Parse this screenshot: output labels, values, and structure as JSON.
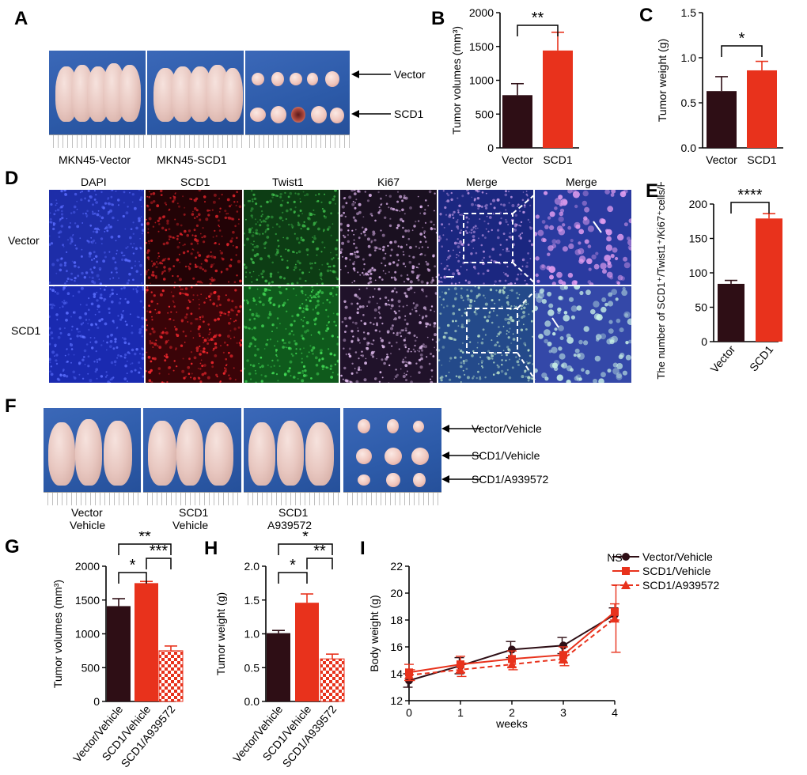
{
  "panels": {
    "A": "A",
    "B": "B",
    "C": "C",
    "D": "D",
    "E": "E",
    "F": "F",
    "G": "G",
    "H": "H",
    "I": "I"
  },
  "panel_a": {
    "captions": [
      "MKN45-Vector",
      "MKN45-SCD1"
    ],
    "arrow_labels": [
      "Vector",
      "SCD1"
    ]
  },
  "panel_d": {
    "columns": [
      "DAPI",
      "SCD1",
      "Twist1",
      "Ki67",
      "Merge",
      "Merge"
    ],
    "rows": [
      "Vector",
      "SCD1"
    ],
    "colors": {
      "DAPI": "#1f2fb0",
      "SCD1": "#c8141e",
      "Twist1": "#1f8a2c",
      "Ki67": "#c7a3d9",
      "Merge": "#5c6fc4"
    }
  },
  "panel_f": {
    "captions": [
      [
        "Vector",
        "Vehicle"
      ],
      [
        "SCD1",
        "Vehicle"
      ],
      [
        "SCD1",
        "A939572"
      ]
    ],
    "arrow_labels": [
      "Vector/Vehicle",
      "SCD1/Vehicle",
      "SCD1/A939572"
    ]
  },
  "colors": {
    "dark": "#2e0e15",
    "red": "#e8321c",
    "checker": "#e8321c"
  },
  "chart_data": [
    {
      "panel": "B",
      "type": "bar",
      "categories": [
        "Vector",
        "SCD1"
      ],
      "values": [
        780,
        1440
      ],
      "errors": [
        170,
        270
      ],
      "ylabel": "Tumor volumes (mm³)",
      "ylim": [
        0,
        2000
      ],
      "yticks": [
        "0",
        "500",
        "1000",
        "1500",
        "2000"
      ],
      "significance": [
        {
          "pair": [
            0,
            1
          ],
          "label": "**"
        }
      ]
    },
    {
      "panel": "C",
      "type": "bar",
      "categories": [
        "Vector",
        "SCD1"
      ],
      "values": [
        0.63,
        0.86
      ],
      "errors": [
        0.16,
        0.1
      ],
      "ylabel": "Tumor weight (g)",
      "ylim": [
        0,
        1.5
      ],
      "yticks": [
        "0.0",
        "0.5",
        "1.0",
        "1.5"
      ],
      "significance": [
        {
          "pair": [
            0,
            1
          ],
          "label": "*"
        }
      ]
    },
    {
      "panel": "E",
      "type": "bar",
      "categories": [
        "Vector",
        "SCD1"
      ],
      "values": [
        84,
        179
      ],
      "errors": [
        5,
        7
      ],
      "ylabel": "The number of SCD1⁺/Twist1⁺/Ki67⁺cells/HPF",
      "ylim": [
        0,
        200
      ],
      "yticks": [
        "0",
        "50",
        "100",
        "150",
        "200"
      ],
      "significance": [
        {
          "pair": [
            0,
            1
          ],
          "label": "****"
        }
      ]
    },
    {
      "panel": "G",
      "type": "bar",
      "categories": [
        "Vector/Vehicle",
        "SCD1/Vehicle",
        "SCD1/A939572"
      ],
      "values": [
        1410,
        1750,
        750
      ],
      "errors": [
        110,
        25,
        70
      ],
      "ylabel": "Tumor volumes (mm³)",
      "ylim": [
        0,
        2000
      ],
      "yticks": [
        "0",
        "500",
        "1000",
        "1500",
        "2000"
      ],
      "significance": [
        {
          "pair": [
            0,
            1
          ],
          "label": "*"
        },
        {
          "pair": [
            1,
            2
          ],
          "label": "***"
        },
        {
          "pair": [
            0,
            2
          ],
          "label": "**"
        }
      ]
    },
    {
      "panel": "H",
      "type": "bar",
      "categories": [
        "Vector/Vehicle",
        "SCD1/Vehicle",
        "SCD1/A939572"
      ],
      "values": [
        1.01,
        1.46,
        0.63
      ],
      "errors": [
        0.04,
        0.13,
        0.07
      ],
      "ylabel": "Tumor weight (g)",
      "ylim": [
        0,
        2.0
      ],
      "yticks": [
        "0.0",
        "0.5",
        "1.0",
        "1.5",
        "2.0"
      ],
      "significance": [
        {
          "pair": [
            0,
            1
          ],
          "label": "*"
        },
        {
          "pair": [
            1,
            2
          ],
          "label": "**"
        },
        {
          "pair": [
            0,
            2
          ],
          "label": "*"
        }
      ]
    },
    {
      "panel": "I",
      "type": "line",
      "x": [
        0,
        1,
        2,
        3,
        4
      ],
      "xlabel": "weeks",
      "ylabel": "Body weight (g)",
      "ylim": [
        12,
        22
      ],
      "yticks": [
        "12",
        "14",
        "16",
        "18",
        "20",
        "22"
      ],
      "xticks": [
        "0",
        "1",
        "2",
        "3",
        "4"
      ],
      "annotation": "NS",
      "series": [
        {
          "name": "Vector/Vehicle",
          "values": [
            13.5,
            14.6,
            15.8,
            16.1,
            18.4
          ],
          "errors": [
            0.5,
            0.6,
            0.6,
            0.6,
            0.5
          ]
        },
        {
          "name": "SCD1/Vehicle",
          "values": [
            14.1,
            14.7,
            15.1,
            15.4,
            18.6
          ],
          "errors": [
            0.6,
            0.6,
            0.6,
            0.6,
            0.6
          ]
        },
        {
          "name": "SCD1/A939572",
          "values": [
            13.9,
            14.3,
            14.7,
            15.1,
            18.1
          ],
          "errors": [
            0.4,
            0.5,
            0.4,
            0.5,
            2.5
          ]
        }
      ]
    }
  ]
}
